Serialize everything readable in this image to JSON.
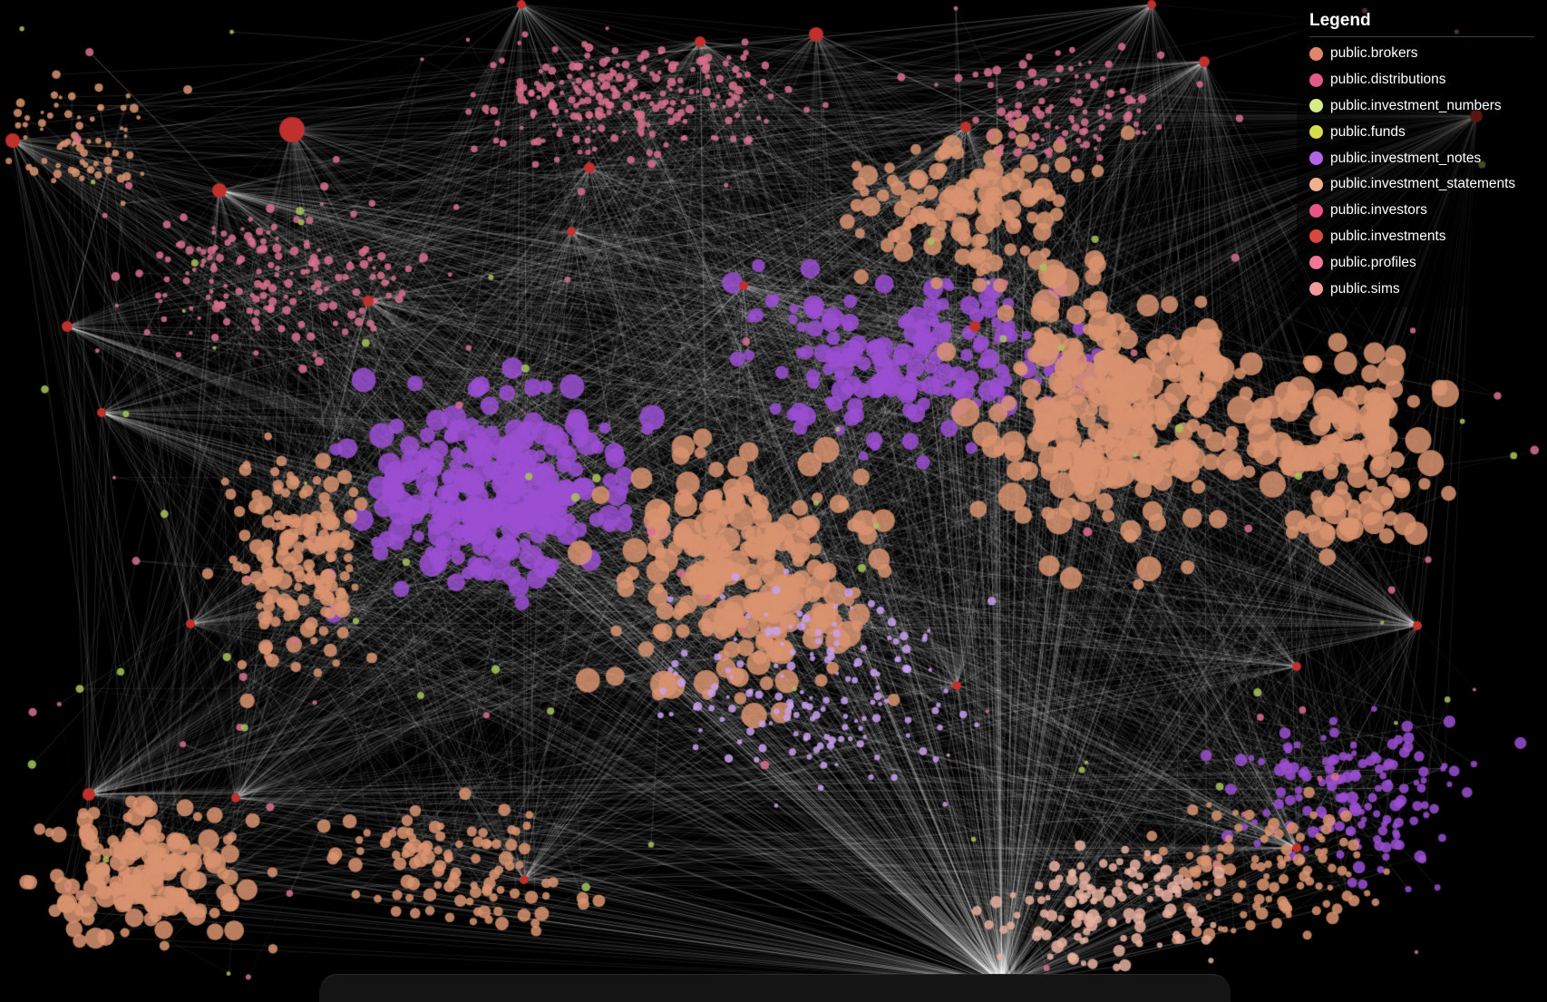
{
  "legend": {
    "title": "Legend",
    "items": [
      {
        "label": "public.brokers",
        "color": "#e0866a"
      },
      {
        "label": "public.distributions",
        "color": "#e4588a"
      },
      {
        "label": "public.investment_numbers",
        "color": "#d4ec8a"
      },
      {
        "label": "public.funds",
        "color": "#d6dc4a"
      },
      {
        "label": "public.investment_notes",
        "color": "#b266e6"
      },
      {
        "label": "public.investment_statements",
        "color": "#f2b090"
      },
      {
        "label": "public.investors",
        "color": "#e85486"
      },
      {
        "label": "public.investments",
        "color": "#d8483c"
      },
      {
        "label": "public.profiles",
        "color": "#ee7898"
      },
      {
        "label": "public.sims",
        "color": "#f29a9c"
      }
    ]
  },
  "colors": {
    "background": "#000000",
    "edge": "#ffffff",
    "hub": "#c0302c",
    "notes": "#9b4fd2",
    "statements": "#d99370",
    "pink": "#d8708e",
    "green": "#a8c45a"
  }
}
